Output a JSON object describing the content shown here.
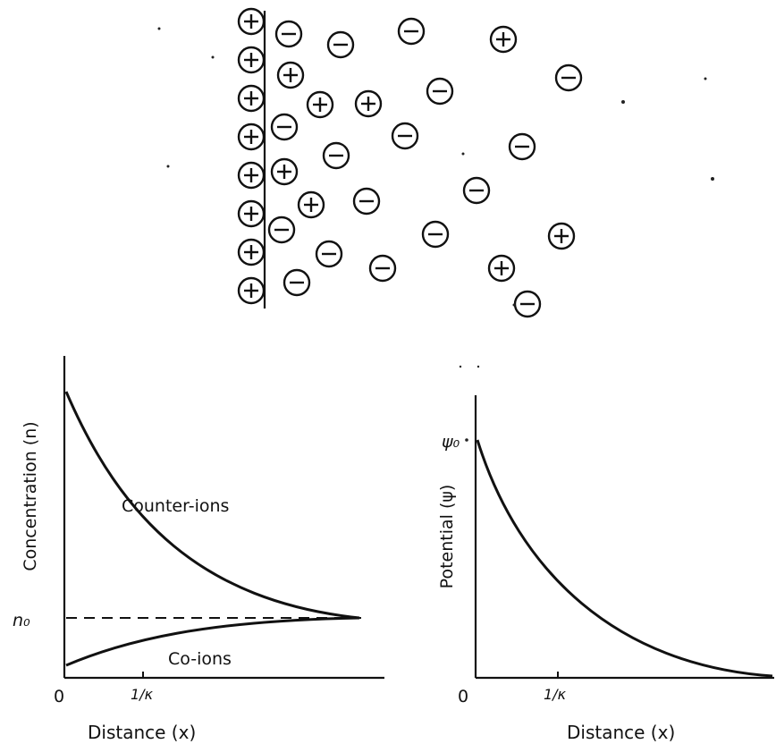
{
  "ion_diagram": {
    "surface_charges": [
      "+",
      "+",
      "+",
      "+",
      "+",
      "+",
      "+",
      "+"
    ],
    "solution_ions": [
      "-",
      "-",
      "-",
      "+",
      "+",
      "-",
      "+",
      "+",
      "-",
      "-",
      "-",
      "-",
      "-",
      "+",
      "-",
      "-",
      "+",
      "-",
      "-",
      "+",
      "-",
      "-",
      "+",
      "-",
      "-"
    ]
  },
  "concentration_plot": {
    "ylabel": "Concentration (n)",
    "xlabel": "Distance (x)",
    "origin_label": "0",
    "x_tick_label": "1/κ",
    "y_tick_label": "n₀",
    "counter_ions_label": "Counter-ions",
    "co_ions_label": "Co-ions"
  },
  "potential_plot": {
    "ylabel": "Potential (ψ)",
    "xlabel": "Distance (x)",
    "origin_label": "0",
    "x_tick_label": "1/κ",
    "y_tick_label": "ψ₀"
  }
}
